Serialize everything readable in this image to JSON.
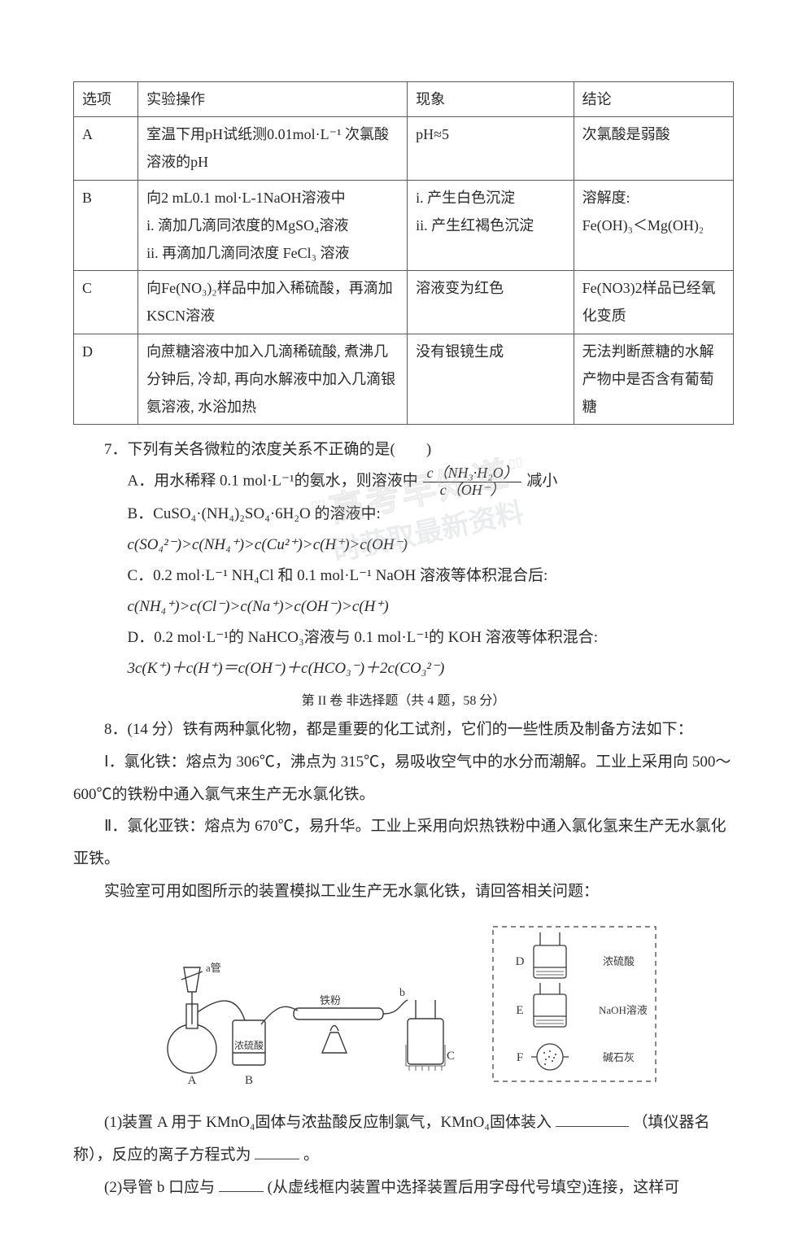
{
  "table": {
    "headers": [
      "选项",
      "实验操作",
      "现象",
      "结论"
    ],
    "rows": [
      {
        "opt": "A",
        "exp": "室温下用pH试纸测0.01mol·L⁻¹ 次氯酸溶液的pH",
        "phen": "pH≈5",
        "conc": "次氯酸是弱酸"
      },
      {
        "opt": "B",
        "exp": "向2 mL0.1 mol·L-1NaOH溶液中\ni. 滴加几滴同浓度的MgSO₄溶液\nii. 再滴加几滴同浓度 FeCl₃ 溶液",
        "phen": "i. 产生白色沉淀\nii. 产生红褐色沉淀",
        "conc": "溶解度:\nFe(OH)₃＜Mg(OH)₂"
      },
      {
        "opt": "C",
        "exp": "向Fe(NO₃)₂样品中加入稀硫酸，再滴加KSCN溶液",
        "phen": "溶液变为红色",
        "conc": "Fe(NO3)2样品已经氧化变质"
      },
      {
        "opt": "D",
        "exp": "向蔗糖溶液中加入几滴稀硫酸, 煮沸几分钟后, 冷却, 再向水解液中加入几滴银氨溶液, 水浴加热",
        "phen": "没有银镜生成",
        "conc": "无法判断蔗糖的水解产物中是否含有葡萄糖"
      }
    ]
  },
  "q7": {
    "stem": "7．下列有关各微粒的浓度关系不正确的是(　　)",
    "A_pre": "A．用水稀释 0.1 mol·L⁻¹的氨水，则溶液中",
    "A_frac_num": "c（NH₃·H₂O）",
    "A_frac_den": "c（OH⁻）",
    "A_post": "减小",
    "B1": "B．CuSO₄·(NH₄)₂SO₄·6H₂O 的溶液中:",
    "B2": "c(SO₄²⁻)>c(NH₄⁺)>c(Cu²⁺)>c(H⁺)>c(OH⁻)",
    "C1": "C．0.2 mol·L⁻¹ NH₄Cl 和 0.1 mol·L⁻¹ NaOH 溶液等体积混合后:",
    "C2": "c(NH₄⁺)>c(Cl⁻)>c(Na⁺)>c(OH⁻)>c(H⁺)",
    "D1": "D．0.2 mol·L⁻¹的 NaHCO₃溶液与 0.1 mol·L⁻¹的 KOH 溶液等体积混合:",
    "D2": "3c(K⁺)＋c(H⁺)＝c(OH⁻)＋c(HCO₃⁻)＋2c(CO₃²⁻)"
  },
  "section2": "第 II 卷   非选择题（共 4 题，58 分）",
  "q8": {
    "stem": "8．(14 分）铁有两种氯化物，都是重要的化工试剂，它们的一些性质及制备方法如下：",
    "p1": "Ⅰ．氯化铁：熔点为 306℃，沸点为 315℃，易吸收空气中的水分而潮解。工业上采用向 500～600℃的铁粉中通入氯气来生产无水氯化铁。",
    "p2": "Ⅱ．氯化亚铁：熔点为 670℃，易升华。工业上采用向炽热铁粉中通入氯化氢来生产无水氯化亚铁。",
    "p3": "实验室可用如图所示的装置模拟工业生产无水氯化铁，请回答相关问题：",
    "labels": {
      "a": "a管",
      "iron": "铁粉",
      "b": "b",
      "h2so4_left": "浓硫酸",
      "A": "A",
      "B": "B",
      "C": "C",
      "D": "D",
      "h2so4_right": "浓硫酸",
      "E": "E",
      "naoh": "NaOH溶液",
      "F": "F",
      "lime": "碱石灰"
    },
    "sub1_pre": "(1)装置 A 用于 KMnO₄固体与浓盐酸反应制氯气，KMnO₄固体装入",
    "sub1_mid": "（填仪器名称），反应的离子方程式为",
    "sub1_post": "。",
    "sub2_pre": "(2)导管 b 口应与",
    "sub2_post": "(从虚线框内装置中选择装置后用字母代号填空)连接，这样可"
  },
  "watermark": {
    "line1": "\"高考早知道\"",
    "line2": "时获取最新资料"
  },
  "colors": {
    "text": "#2a2a2a",
    "border": "#5a5a5a",
    "figure_stroke": "#3a3a3a",
    "watermark": "#9aa0a6",
    "bg": "#ffffff"
  }
}
